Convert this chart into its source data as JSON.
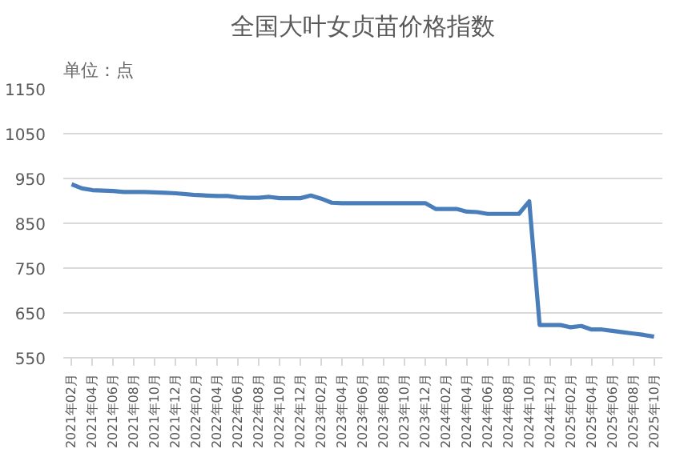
{
  "chart_data": {
    "type": "line",
    "title": "全国大叶女贞苗价格指数",
    "annotations": [
      "单位：点"
    ],
    "categories": [
      "2021年02月",
      null,
      "2021年04月",
      null,
      "2021年06月",
      null,
      "2021年08月",
      null,
      "2021年10月",
      null,
      "2021年12月",
      null,
      "2022年02月",
      null,
      "2022年04月",
      null,
      "2022年06月",
      null,
      "2022年08月",
      null,
      "2022年10月",
      null,
      "2022年12月",
      null,
      "2023年02月",
      null,
      "2023年04月",
      null,
      "2023年06月",
      null,
      "2023年08月",
      null,
      "2023年10月",
      null,
      "2023年12月",
      null,
      "2024年02月",
      null,
      "2024年04月",
      null,
      "2024年06月",
      null,
      "2024年08月",
      null,
      "2024年10月",
      null,
      "2024年12月",
      null,
      "2025年02月",
      null,
      "2025年04月",
      null,
      "2025年06月",
      null,
      "2025年08月",
      null,
      "2025年10月"
    ],
    "series": [
      {
        "color": "#4a7ebb",
        "values": [
          937,
          928,
          924,
          923,
          922,
          920,
          920,
          920,
          919,
          918,
          917,
          915,
          913,
          912,
          911,
          911,
          908,
          907,
          907,
          909,
          906,
          906,
          906,
          912,
          905,
          896,
          895,
          895,
          895,
          895,
          895,
          895,
          895,
          895,
          895,
          882,
          882,
          882,
          876,
          875,
          871,
          871,
          871,
          871,
          899,
          623,
          623,
          623,
          618,
          621,
          613,
          613,
          610,
          607,
          604,
          601,
          597
        ]
      }
    ],
    "ylim": [
      550,
      1150
    ],
    "yticks": [
      550,
      650,
      750,
      850,
      950,
      1050,
      1150
    ],
    "grid": "y",
    "marker": "none",
    "line_style": "solid"
  }
}
